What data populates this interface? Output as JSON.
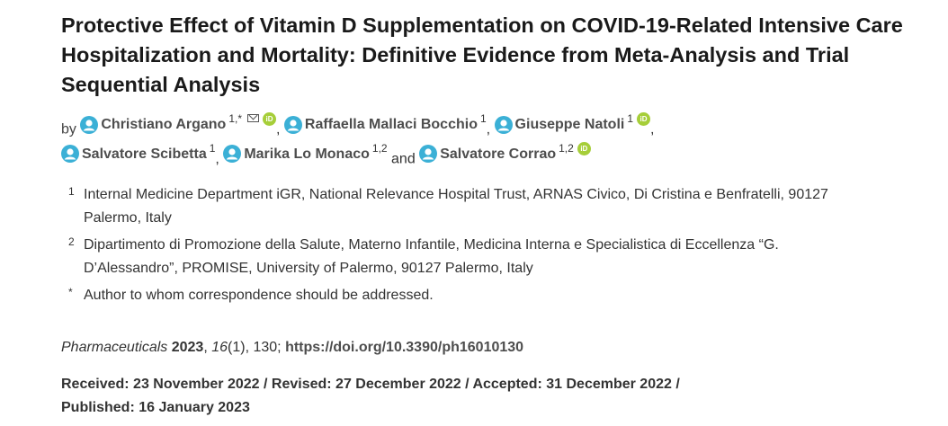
{
  "title": "Protective Effect of Vitamin D Supplementation on COVID-19-Related Intensive Care Hospitalization and Mortality: Definitive Evidence from Meta-Analysis and Trial Sequential Analysis",
  "by_label": "by",
  "and_label": "and",
  "authors": [
    {
      "name": "Christiano Argano",
      "sup": "1,*"
    },
    {
      "name": "Raffaella Mallaci Bocchio",
      "sup": "1"
    },
    {
      "name": "Giuseppe Natoli",
      "sup": "1"
    },
    {
      "name": "Salvatore Scibetta",
      "sup": "1"
    },
    {
      "name": "Marika Lo Monaco",
      "sup": "1,2"
    },
    {
      "name": "Salvatore Corrao",
      "sup": "1,2"
    }
  ],
  "orcid_label": "iD",
  "affiliations": [
    {
      "num": "1",
      "text": "Internal Medicine Department iGR, National Relevance Hospital Trust, ARNAS Civico, Di Cristina e Benfratelli, 90127 Palermo, Italy"
    },
    {
      "num": "2",
      "text": "Dipartimento di Promozione della Salute, Materno Infantile, Medicina Interna e Specialistica di Eccellenza “G. D’Alessandro”, PROMISE, University of Palermo, 90127 Palermo, Italy"
    },
    {
      "num": "*",
      "text": "Author to whom correspondence should be addressed."
    }
  ],
  "citation": {
    "journal": "Pharmaceuticals",
    "year": "2023",
    "volume": "16",
    "issue": "(1)",
    "pages": ", 130;",
    "doi": "https://doi.org/10.3390/ph16010130"
  },
  "dates": {
    "line1": "Received: 23 November 2022 / Revised: 27 December 2022 / Accepted: 31 December 2022 /",
    "line2": "Published: 16 January 2023"
  },
  "colors": {
    "author_icon": "#3bb0d6",
    "orcid": "#a6ce39"
  }
}
